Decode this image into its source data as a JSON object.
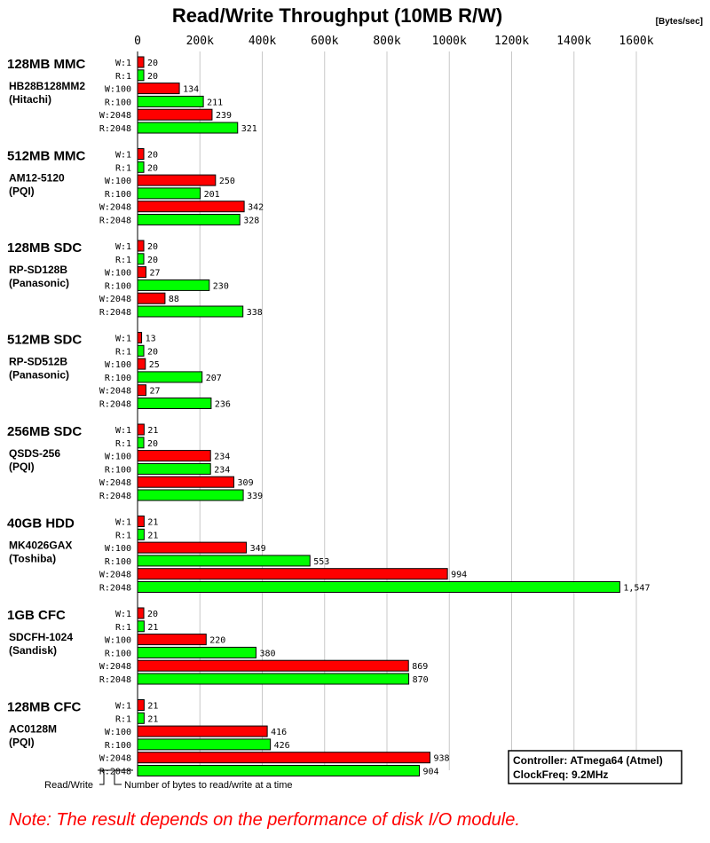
{
  "chart_data": {
    "type": "bar",
    "orientation": "horizontal",
    "title": "Read/Write Throughput (10MB R/W)",
    "unit_label": "[Bytes/sec]",
    "x_ticks": [
      "0",
      "200k",
      "400k",
      "600k",
      "800k",
      "1000k",
      "1200k",
      "1400k",
      "1600k"
    ],
    "xlim": [
      0,
      1600
    ],
    "grid": true,
    "colors": {
      "write": "#ff0000",
      "read": "#00ff00"
    },
    "row_labels": [
      "W:1",
      "R:1",
      "W:100",
      "R:100",
      "W:2048",
      "R:2048"
    ],
    "groups": [
      {
        "name": "128MB MMC",
        "model": "HB28B128MM2",
        "vendor": "(Hitachi)",
        "values": [
          20,
          20,
          134,
          211,
          239,
          321
        ],
        "labels": [
          "20",
          "20",
          "134",
          "211",
          "239",
          "321"
        ]
      },
      {
        "name": "512MB MMC",
        "model": "AM12-5120",
        "vendor": "(PQI)",
        "values": [
          20,
          20,
          250,
          201,
          342,
          328
        ],
        "labels": [
          "20",
          "20",
          "250",
          "201",
          "342",
          "328"
        ]
      },
      {
        "name": "128MB SDC",
        "model": "RP-SD128B",
        "vendor": "(Panasonic)",
        "values": [
          20,
          20,
          27,
          230,
          88,
          338
        ],
        "labels": [
          "20",
          "20",
          "27",
          "230",
          "88",
          "338"
        ]
      },
      {
        "name": "512MB SDC",
        "model": "RP-SD512B",
        "vendor": "(Panasonic)",
        "values": [
          13,
          20,
          25,
          207,
          27,
          236
        ],
        "labels": [
          "13",
          "20",
          "25",
          "207",
          "27",
          "236"
        ]
      },
      {
        "name": "256MB SDC",
        "model": "QSDS-256",
        "vendor": "(PQI)",
        "values": [
          21,
          20,
          234,
          234,
          309,
          339
        ],
        "labels": [
          "21",
          "20",
          "234",
          "234",
          "309",
          "339"
        ]
      },
      {
        "name": "40GB HDD",
        "model": "MK4026GAX",
        "vendor": "(Toshiba)",
        "values": [
          21,
          21,
          349,
          553,
          994,
          1547
        ],
        "labels": [
          "21",
          "21",
          "349",
          "553",
          "994",
          "1,547"
        ]
      },
      {
        "name": "1GB CFC",
        "model": "SDCFH-1024",
        "vendor": "(Sandisk)",
        "values": [
          20,
          21,
          220,
          380,
          869,
          870
        ],
        "labels": [
          "20",
          "21",
          "220",
          "380",
          "869",
          "870"
        ]
      },
      {
        "name": "128MB CFC",
        "model": "AC0128M",
        "vendor": "(PQI)",
        "values": [
          21,
          21,
          416,
          426,
          938,
          904
        ],
        "labels": [
          "21",
          "21",
          "416",
          "426",
          "938",
          "904"
        ]
      }
    ],
    "legend": {
      "rw": "Read/Write",
      "bytes": "Number of bytes to read/write at a time"
    },
    "info": [
      "Controller: ATmega64 (Atmel)",
      "ClockFreq: 9.2MHz"
    ],
    "note": "Note: The result depends on the performance of disk I/O module."
  }
}
